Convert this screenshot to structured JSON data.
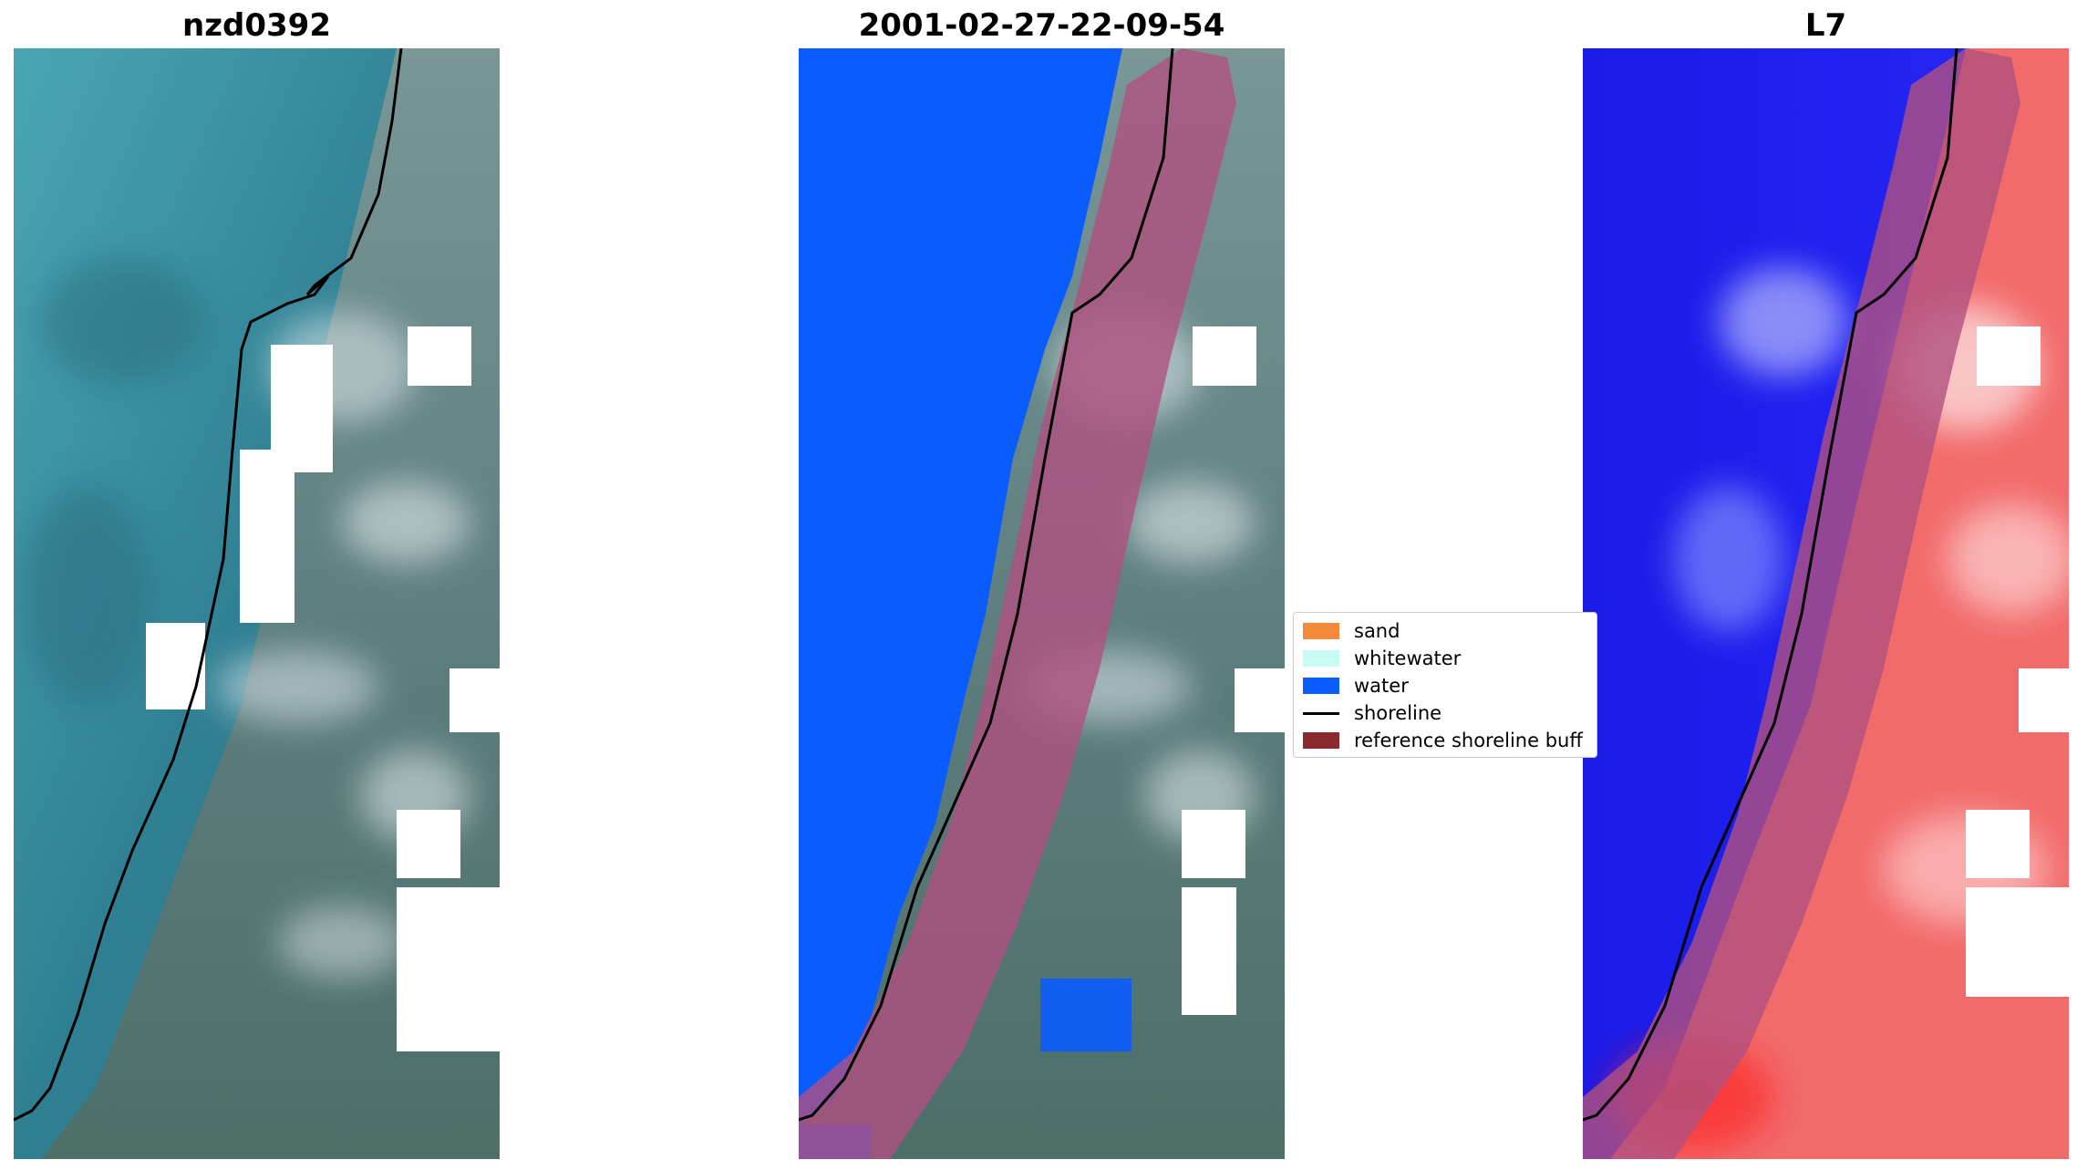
{
  "panels": [
    {
      "title": "nzd0392"
    },
    {
      "title": "2001-02-27-22-09-54"
    },
    {
      "title": "L7"
    }
  ],
  "legend": {
    "items": [
      {
        "label": "sand",
        "color": "#f58a3a",
        "kind": "patch"
      },
      {
        "label": "whitewater",
        "color": "#c6fbf6",
        "kind": "patch"
      },
      {
        "label": "water",
        "color": "#0a5cff",
        "kind": "patch"
      },
      {
        "label": "shoreline",
        "color": "#000000",
        "kind": "line"
      },
      {
        "label": "reference shoreline buff",
        "color": "#8b2a2e",
        "kind": "patch"
      }
    ]
  },
  "colors": {
    "ocean": "#3b8ea0",
    "land": "#5f7f80",
    "water_class": "#0a5cff",
    "buffer": "#b0507f",
    "index_water": "#1b1be6",
    "index_land": "#f45b5b"
  }
}
